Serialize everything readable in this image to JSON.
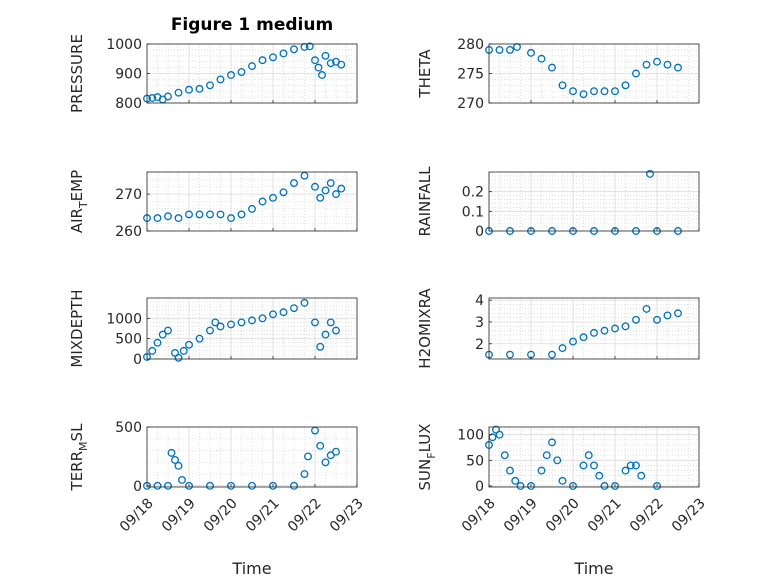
{
  "figure": {
    "title": "Figure 1 medium",
    "marker_color": "#0072BD",
    "xlabel": "Time",
    "xlim": [
      "09/18",
      "09/23"
    ],
    "x_ticklabels": [
      "09/18",
      "09/19",
      "09/20",
      "09/21",
      "09/22",
      "09/23"
    ]
  },
  "chart_data": [
    {
      "type": "scatter",
      "ylabel": "PRESSURE",
      "ylim": [
        800,
        1000
      ],
      "yticks": [
        800,
        900,
        1000
      ],
      "grid": true,
      "points": [
        [
          "09/18 00:00",
          815
        ],
        [
          "09/18 03:00",
          817
        ],
        [
          "09/18 06:00",
          820
        ],
        [
          "09/18 09:00",
          812
        ],
        [
          "09/18 12:00",
          822
        ],
        [
          "09/18 18:00",
          835
        ],
        [
          "09/19 00:00",
          845
        ],
        [
          "09/19 06:00",
          848
        ],
        [
          "09/19 12:00",
          860
        ],
        [
          "09/19 18:00",
          880
        ],
        [
          "09/20 00:00",
          895
        ],
        [
          "09/20 06:00",
          905
        ],
        [
          "09/20 12:00",
          925
        ],
        [
          "09/20 18:00",
          945
        ],
        [
          "09/21 00:00",
          955
        ],
        [
          "09/21 06:00",
          968
        ],
        [
          "09/21 12:00",
          982
        ],
        [
          "09/21 18:00",
          990
        ],
        [
          "09/21 21:00",
          992
        ],
        [
          "09/22 00:00",
          945
        ],
        [
          "09/22 02:00",
          920
        ],
        [
          "09/22 04:00",
          895
        ],
        [
          "09/22 06:00",
          960
        ],
        [
          "09/22 09:00",
          935
        ],
        [
          "09/22 12:00",
          940
        ],
        [
          "09/22 15:00",
          930
        ]
      ]
    },
    {
      "type": "scatter",
      "ylabel": "THETA",
      "ylim": [
        270,
        280
      ],
      "yticks": [
        270,
        275,
        280
      ],
      "grid": true,
      "points": [
        [
          "09/18 00:00",
          279
        ],
        [
          "09/18 06:00",
          279
        ],
        [
          "09/18 12:00",
          279
        ],
        [
          "09/18 16:00",
          279.5
        ],
        [
          "09/19 00:00",
          278.5
        ],
        [
          "09/19 06:00",
          277.5
        ],
        [
          "09/19 12:00",
          276
        ],
        [
          "09/19 18:00",
          273
        ],
        [
          "09/20 00:00",
          272
        ],
        [
          "09/20 06:00",
          271.5
        ],
        [
          "09/20 12:00",
          272
        ],
        [
          "09/20 18:00",
          272
        ],
        [
          "09/21 00:00",
          272
        ],
        [
          "09/21 06:00",
          273
        ],
        [
          "09/21 12:00",
          275
        ],
        [
          "09/21 18:00",
          276.5
        ],
        [
          "09/22 00:00",
          277
        ],
        [
          "09/22 06:00",
          276.5
        ],
        [
          "09/22 12:00",
          276
        ]
      ]
    },
    {
      "type": "scatter",
      "ylabel": "AIR_TEMP",
      "ylim": [
        260,
        276
      ],
      "yticks": [
        260,
        270
      ],
      "grid": true,
      "points": [
        [
          "09/18 00:00",
          263.5
        ],
        [
          "09/18 06:00",
          263.5
        ],
        [
          "09/18 12:00",
          264
        ],
        [
          "09/18 18:00",
          263.5
        ],
        [
          "09/19 00:00",
          264.5
        ],
        [
          "09/19 06:00",
          264.5
        ],
        [
          "09/19 12:00",
          264.5
        ],
        [
          "09/19 18:00",
          264.5
        ],
        [
          "09/20 00:00",
          263.5
        ],
        [
          "09/20 06:00",
          264.5
        ],
        [
          "09/20 12:00",
          266
        ],
        [
          "09/20 18:00",
          268
        ],
        [
          "09/21 00:00",
          269
        ],
        [
          "09/21 06:00",
          270.5
        ],
        [
          "09/21 12:00",
          273
        ],
        [
          "09/21 18:00",
          275
        ],
        [
          "09/22 00:00",
          272
        ],
        [
          "09/22 03:00",
          269
        ],
        [
          "09/22 06:00",
          271
        ],
        [
          "09/22 09:00",
          273
        ],
        [
          "09/22 12:00",
          270
        ],
        [
          "09/22 15:00",
          271.5
        ]
      ]
    },
    {
      "type": "scatter",
      "ylabel": "RAINFALL",
      "ylim": [
        0,
        0.3
      ],
      "yticks": [
        0,
        0.1,
        0.2
      ],
      "grid": true,
      "points": [
        [
          "09/18 00:00",
          0
        ],
        [
          "09/18 12:00",
          0
        ],
        [
          "09/19 00:00",
          0
        ],
        [
          "09/19 12:00",
          0
        ],
        [
          "09/20 00:00",
          0
        ],
        [
          "09/20 12:00",
          0
        ],
        [
          "09/21 00:00",
          0
        ],
        [
          "09/21 12:00",
          0
        ],
        [
          "09/21 20:00",
          0.29
        ],
        [
          "09/22 00:00",
          0
        ],
        [
          "09/22 12:00",
          0
        ]
      ]
    },
    {
      "type": "scatter",
      "ylabel": "MIXDEPTH",
      "ylim": [
        0,
        1500
      ],
      "yticks": [
        0,
        500,
        1000
      ],
      "grid": true,
      "points": [
        [
          "09/18 00:00",
          50
        ],
        [
          "09/18 03:00",
          200
        ],
        [
          "09/18 06:00",
          400
        ],
        [
          "09/18 09:00",
          600
        ],
        [
          "09/18 12:00",
          700
        ],
        [
          "09/18 16:00",
          150
        ],
        [
          "09/18 18:00",
          30
        ],
        [
          "09/18 21:00",
          200
        ],
        [
          "09/19 00:00",
          350
        ],
        [
          "09/19 06:00",
          500
        ],
        [
          "09/19 12:00",
          700
        ],
        [
          "09/19 15:00",
          900
        ],
        [
          "09/19 18:00",
          800
        ],
        [
          "09/20 00:00",
          850
        ],
        [
          "09/20 06:00",
          900
        ],
        [
          "09/20 12:00",
          950
        ],
        [
          "09/20 18:00",
          1000
        ],
        [
          "09/21 00:00",
          1100
        ],
        [
          "09/21 06:00",
          1150
        ],
        [
          "09/21 12:00",
          1250
        ],
        [
          "09/21 18:00",
          1380
        ],
        [
          "09/22 00:00",
          900
        ],
        [
          "09/22 03:00",
          300
        ],
        [
          "09/22 06:00",
          600
        ],
        [
          "09/22 09:00",
          900
        ],
        [
          "09/22 12:00",
          700
        ]
      ]
    },
    {
      "type": "scatter",
      "ylabel": "H2OMIXRA",
      "ylim": [
        1.3,
        4.1
      ],
      "yticks": [
        2,
        3,
        4
      ],
      "grid": true,
      "points": [
        [
          "09/18 00:00",
          1.5
        ],
        [
          "09/18 12:00",
          1.5
        ],
        [
          "09/19 00:00",
          1.5
        ],
        [
          "09/19 12:00",
          1.5
        ],
        [
          "09/19 18:00",
          1.8
        ],
        [
          "09/20 00:00",
          2.1
        ],
        [
          "09/20 06:00",
          2.3
        ],
        [
          "09/20 12:00",
          2.5
        ],
        [
          "09/20 18:00",
          2.6
        ],
        [
          "09/21 00:00",
          2.7
        ],
        [
          "09/21 06:00",
          2.8
        ],
        [
          "09/21 12:00",
          3.1
        ],
        [
          "09/21 18:00",
          3.6
        ],
        [
          "09/22 00:00",
          3.1
        ],
        [
          "09/22 06:00",
          3.3
        ],
        [
          "09/22 12:00",
          3.4
        ]
      ]
    },
    {
      "type": "scatter",
      "ylabel": "TERR_MSL",
      "ylim": [
        -10,
        500
      ],
      "yticks": [
        0,
        500
      ],
      "grid": true,
      "points": [
        [
          "09/18 00:00",
          0
        ],
        [
          "09/18 06:00",
          0
        ],
        [
          "09/18 12:00",
          0
        ],
        [
          "09/18 14:00",
          280
        ],
        [
          "09/18 16:00",
          220
        ],
        [
          "09/18 18:00",
          170
        ],
        [
          "09/18 20:00",
          50
        ],
        [
          "09/19 00:00",
          0
        ],
        [
          "09/19 12:00",
          0
        ],
        [
          "09/20 00:00",
          0
        ],
        [
          "09/20 12:00",
          0
        ],
        [
          "09/21 00:00",
          0
        ],
        [
          "09/21 12:00",
          0
        ],
        [
          "09/21 18:00",
          100
        ],
        [
          "09/21 20:00",
          250
        ],
        [
          "09/22 00:00",
          470
        ],
        [
          "09/22 03:00",
          340
        ],
        [
          "09/22 06:00",
          200
        ],
        [
          "09/22 09:00",
          260
        ],
        [
          "09/22 12:00",
          290
        ]
      ]
    },
    {
      "type": "scatter",
      "ylabel": "SUN_FLUX",
      "ylim": [
        -2,
        115
      ],
      "yticks": [
        0,
        50,
        100
      ],
      "grid": true,
      "points": [
        [
          "09/18 00:00",
          80
        ],
        [
          "09/18 02:00",
          95
        ],
        [
          "09/18 04:00",
          110
        ],
        [
          "09/18 06:00",
          100
        ],
        [
          "09/18 09:00",
          60
        ],
        [
          "09/18 12:00",
          30
        ],
        [
          "09/18 15:00",
          10
        ],
        [
          "09/18 18:00",
          0
        ],
        [
          "09/19 00:00",
          0
        ],
        [
          "09/19 06:00",
          30
        ],
        [
          "09/19 09:00",
          60
        ],
        [
          "09/19 12:00",
          85
        ],
        [
          "09/19 15:00",
          50
        ],
        [
          "09/19 18:00",
          10
        ],
        [
          "09/20 00:00",
          0
        ],
        [
          "09/20 06:00",
          40
        ],
        [
          "09/20 09:00",
          60
        ],
        [
          "09/20 12:00",
          40
        ],
        [
          "09/20 15:00",
          20
        ],
        [
          "09/20 18:00",
          0
        ],
        [
          "09/21 00:00",
          0
        ],
        [
          "09/21 06:00",
          30
        ],
        [
          "09/21 09:00",
          40
        ],
        [
          "09/21 12:00",
          40
        ],
        [
          "09/21 15:00",
          20
        ],
        [
          "09/22 00:00",
          0
        ]
      ]
    }
  ]
}
